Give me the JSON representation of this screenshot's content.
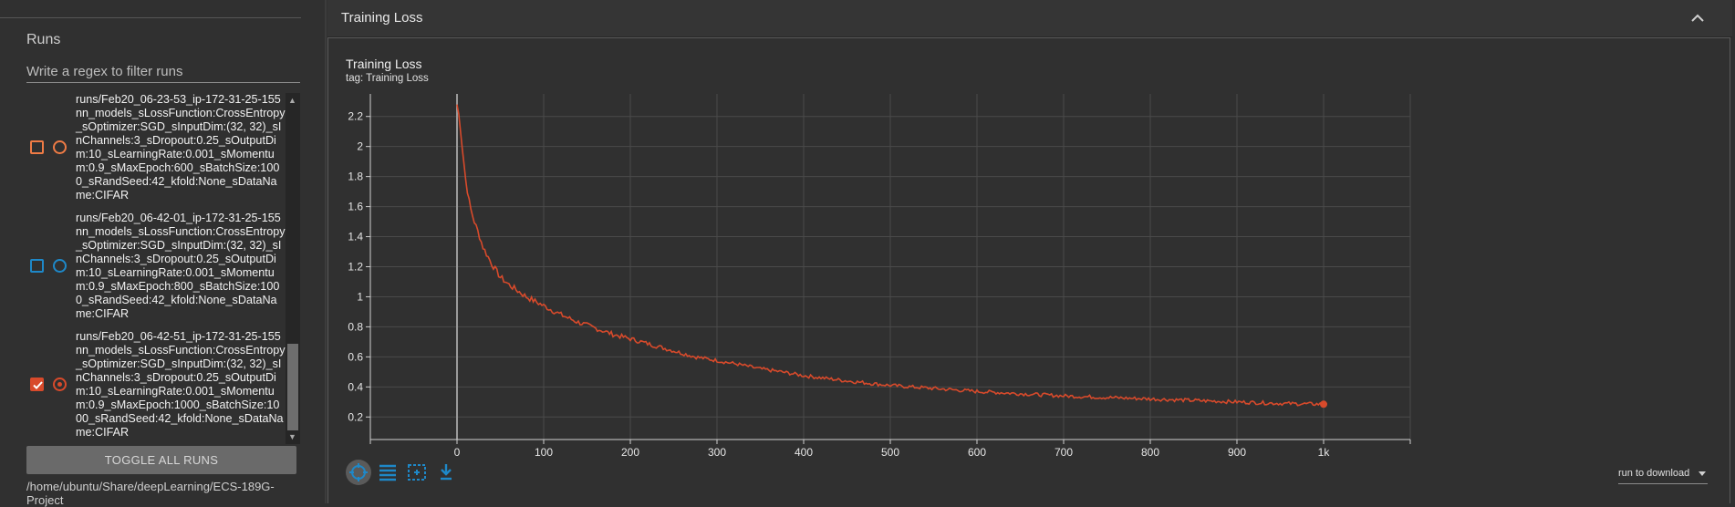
{
  "sidebar": {
    "runs_title": "Runs",
    "filter_placeholder": "Write a regex to filter runs",
    "runs": [
      {
        "name": "runs/Feb20_06-23-53_ip-172-31-25-155nn_models_sLossFunction:CrossEntropy_sOptimizer:SGD_sInputDim:(32, 32)_sInChannels:3_sDropout:0.25_sOutputDim:10_sLearningRate:0.001_sMomentum:0.9_sMaxEpoch:600_sBatchSize:1000_sRandSeed:42_kfold:None_sDataName:CIFAR",
        "color": "#ef7b45",
        "checked": false,
        "selected": false
      },
      {
        "name": "runs/Feb20_06-42-01_ip-172-31-25-155nn_models_sLossFunction:CrossEntropy_sOptimizer:SGD_sInputDim:(32, 32)_sInChannels:3_sDropout:0.25_sOutputDim:10_sLearningRate:0.001_sMomentum:0.9_sMaxEpoch:800_sBatchSize:1000_sRandSeed:42_kfold:None_sDataName:CIFAR",
        "color": "#1e88c8",
        "checked": false,
        "selected": false
      },
      {
        "name": "runs/Feb20_06-42-51_ip-172-31-25-155nn_models_sLossFunction:CrossEntropy_sOptimizer:SGD_sInputDim:(32, 32)_sInChannels:3_sDropout:0.25_sOutputDim:10_sLearningRate:0.001_sMomentum:0.9_sMaxEpoch:1000_sBatchSize:1000_sRandSeed:42_kfold:None_sDataName:CIFAR",
        "color": "#d84a2b",
        "checked": true,
        "selected": true
      }
    ],
    "toggle_all_label": "TOGGLE ALL RUNS",
    "logdir": "/home/ubuntu/Share/deepLearning/ECS-189G-Project"
  },
  "card": {
    "header_title": "Training Loss",
    "chart_title": "Training Loss",
    "chart_tag": "tag: Training Loss",
    "download_label": "run to download"
  },
  "icons": {
    "collapse": "chevron-up-icon",
    "fit": "fit-domain-icon",
    "data": "data-table-icon",
    "zoom": "zoom-selection-icon",
    "download": "download-icon"
  },
  "colors": {
    "series": "#d84a2b",
    "accent": "#1e88c8",
    "background": "#303030"
  },
  "chart_data": {
    "type": "line",
    "title": "Training Loss",
    "x_tick_labels": [
      "0",
      "100",
      "200",
      "300",
      "400",
      "500",
      "600",
      "700",
      "800",
      "900",
      "1k"
    ],
    "y_tick_labels": [
      "0.2",
      "0.4",
      "0.6",
      "0.8",
      "1",
      "1.2",
      "1.4",
      "1.6",
      "1.8",
      "2",
      "2.2"
    ],
    "xlim": [
      -100,
      1100
    ],
    "ylim": [
      0.05,
      2.35
    ],
    "grid": true,
    "series": [
      {
        "x": [
          0,
          3,
          6,
          10,
          15,
          20,
          25,
          30,
          40,
          50,
          60,
          70,
          80,
          90,
          100,
          120,
          140,
          160,
          180,
          200,
          225,
          250,
          275,
          300,
          325,
          350,
          375,
          400,
          450,
          500,
          550,
          600,
          650,
          700,
          750,
          800,
          850,
          900,
          950,
          1000
        ],
        "y": [
          2.28,
          2.18,
          2.0,
          1.78,
          1.6,
          1.5,
          1.42,
          1.33,
          1.22,
          1.13,
          1.08,
          1.04,
          1.0,
          0.97,
          0.94,
          0.88,
          0.83,
          0.79,
          0.75,
          0.72,
          0.68,
          0.64,
          0.6,
          0.575,
          0.55,
          0.52,
          0.5,
          0.475,
          0.44,
          0.41,
          0.39,
          0.37,
          0.355,
          0.34,
          0.33,
          0.32,
          0.31,
          0.3,
          0.29,
          0.285
        ]
      }
    ]
  }
}
